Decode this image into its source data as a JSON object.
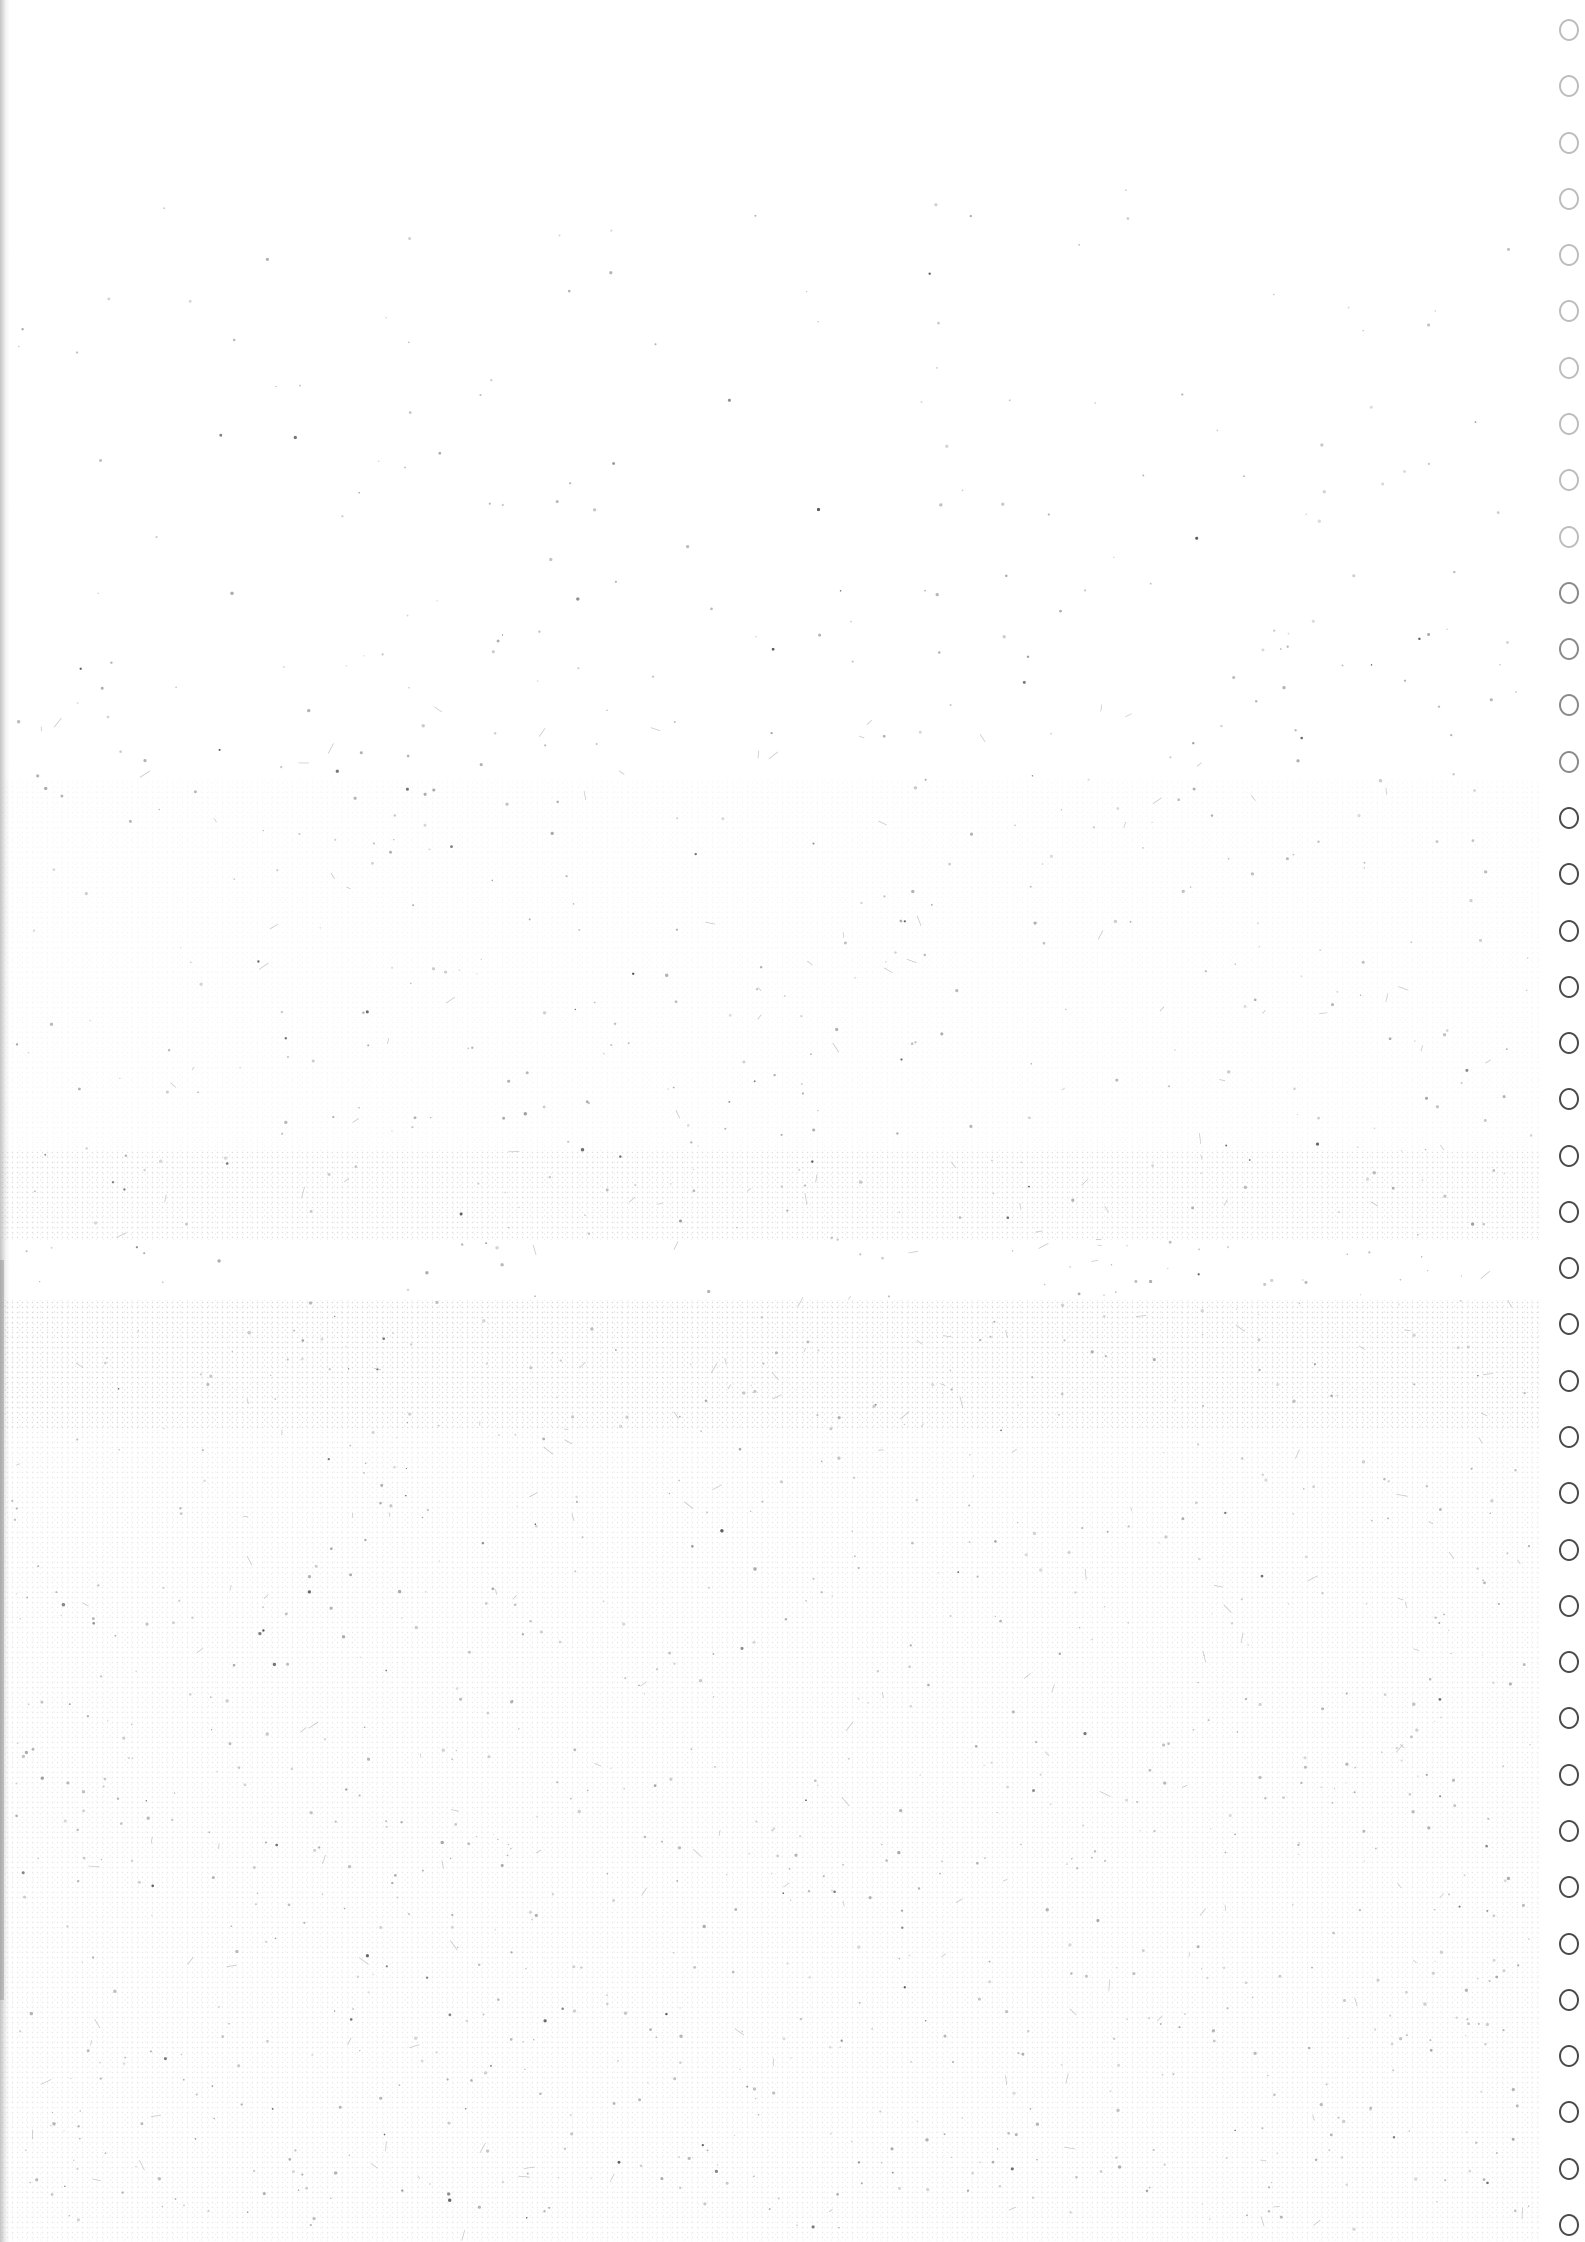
{
  "page": {
    "kind": "blank scanned sheet",
    "background_color": "#ffffff",
    "ink_color": "#4a4a4a"
  },
  "binding_holes": {
    "side": "right",
    "count": 40
  }
}
